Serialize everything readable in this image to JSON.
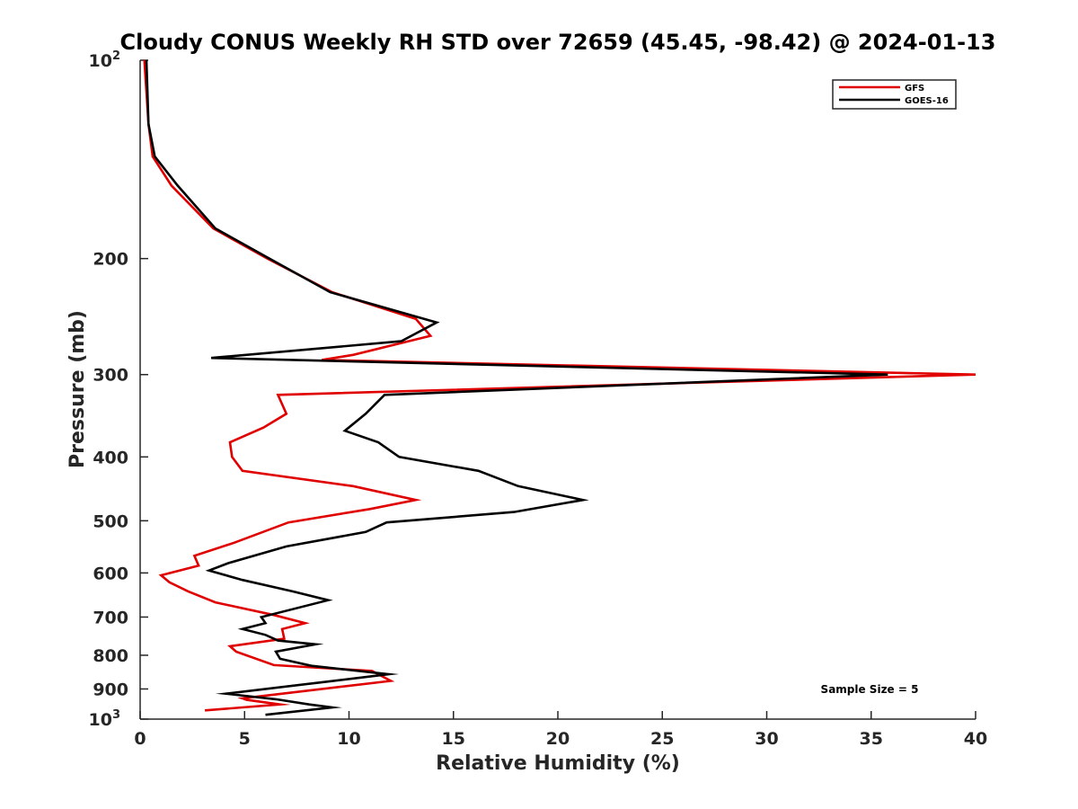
{
  "chart_data": {
    "type": "line",
    "title": "Cloudy CONUS Weekly RH STD over 72659 (45.45, -98.42) @ 2024-01-13",
    "xlabel": "Relative Humidity (%)",
    "ylabel": "Pressure (mb)",
    "xlim": [
      0,
      40
    ],
    "ylim": [
      100,
      1000
    ],
    "y_scale": "log",
    "y_reversed": true,
    "x_ticks": [
      0,
      5,
      10,
      15,
      20,
      25,
      30,
      35,
      40
    ],
    "y_ticks": [
      {
        "value": 100,
        "label": "10",
        "sup": "2"
      },
      {
        "value": 200,
        "label": "200"
      },
      {
        "value": 300,
        "label": "300"
      },
      {
        "value": 400,
        "label": "400"
      },
      {
        "value": 500,
        "label": "500"
      },
      {
        "value": 600,
        "label": "600"
      },
      {
        "value": 700,
        "label": "700"
      },
      {
        "value": 800,
        "label": "800"
      },
      {
        "value": 900,
        "label": "900"
      },
      {
        "value": 1000,
        "label": "10",
        "sup": "3"
      }
    ],
    "grid": false,
    "legend_position": "top-right",
    "annotation": "Sample Size = 5",
    "series": [
      {
        "name": "GFS",
        "color": "#e00000",
        "points": [
          [
            0.2,
            100
          ],
          [
            0.4,
            125
          ],
          [
            0.6,
            140
          ],
          [
            1.5,
            155
          ],
          [
            3.5,
            180
          ],
          [
            6.1,
            200
          ],
          [
            9.2,
            225
          ],
          [
            13.2,
            247
          ],
          [
            13.9,
            262
          ],
          [
            10.2,
            280
          ],
          [
            8.7,
            285
          ],
          [
            40.0,
            300
          ],
          [
            6.6,
            322
          ],
          [
            7.0,
            344
          ],
          [
            5.9,
            361
          ],
          [
            4.3,
            380
          ],
          [
            4.4,
            400
          ],
          [
            4.9,
            420
          ],
          [
            10.2,
            443
          ],
          [
            13.2,
            465
          ],
          [
            11.0,
            480
          ],
          [
            7.1,
            503
          ],
          [
            4.5,
            540
          ],
          [
            2.6,
            565
          ],
          [
            2.8,
            585
          ],
          [
            1.0,
            605
          ],
          [
            1.4,
            620
          ],
          [
            2.3,
            640
          ],
          [
            3.6,
            665
          ],
          [
            6.4,
            695
          ],
          [
            7.9,
            715
          ],
          [
            6.8,
            730
          ],
          [
            6.9,
            755
          ],
          [
            4.3,
            775
          ],
          [
            4.6,
            790
          ],
          [
            6.4,
            828
          ],
          [
            11.1,
            845
          ],
          [
            12.0,
            875
          ],
          [
            4.9,
            930
          ],
          [
            5.1,
            935
          ],
          [
            6.7,
            950
          ],
          [
            3.1,
            970
          ]
        ]
      },
      {
        "name": "GOES-16",
        "color": "#000000",
        "points": [
          [
            0.3,
            100
          ],
          [
            0.4,
            125
          ],
          [
            0.7,
            140
          ],
          [
            1.8,
            155
          ],
          [
            3.6,
            180
          ],
          [
            6.2,
            200
          ],
          [
            9.1,
            225
          ],
          [
            14.2,
            250
          ],
          [
            12.5,
            267
          ],
          [
            3.4,
            283
          ],
          [
            35.8,
            300
          ],
          [
            11.7,
            322
          ],
          [
            10.8,
            344
          ],
          [
            9.8,
            365
          ],
          [
            11.4,
            380
          ],
          [
            12.4,
            400
          ],
          [
            16.2,
            420
          ],
          [
            18.1,
            443
          ],
          [
            21.2,
            465
          ],
          [
            17.9,
            485
          ],
          [
            11.8,
            503
          ],
          [
            10.8,
            520
          ],
          [
            7.0,
            547
          ],
          [
            4.2,
            580
          ],
          [
            3.3,
            595
          ],
          [
            4.9,
            615
          ],
          [
            7.3,
            640
          ],
          [
            9.0,
            660
          ],
          [
            5.8,
            700
          ],
          [
            6.0,
            715
          ],
          [
            4.9,
            730
          ],
          [
            6.0,
            745
          ],
          [
            6.6,
            760
          ],
          [
            8.4,
            770
          ],
          [
            6.5,
            790
          ],
          [
            6.7,
            810
          ],
          [
            8.2,
            830
          ],
          [
            11.9,
            855
          ],
          [
            8.6,
            880
          ],
          [
            4.1,
            915
          ],
          [
            6.5,
            933
          ],
          [
            8.1,
            950
          ],
          [
            9.2,
            960
          ],
          [
            6.0,
            985
          ]
        ]
      }
    ]
  }
}
